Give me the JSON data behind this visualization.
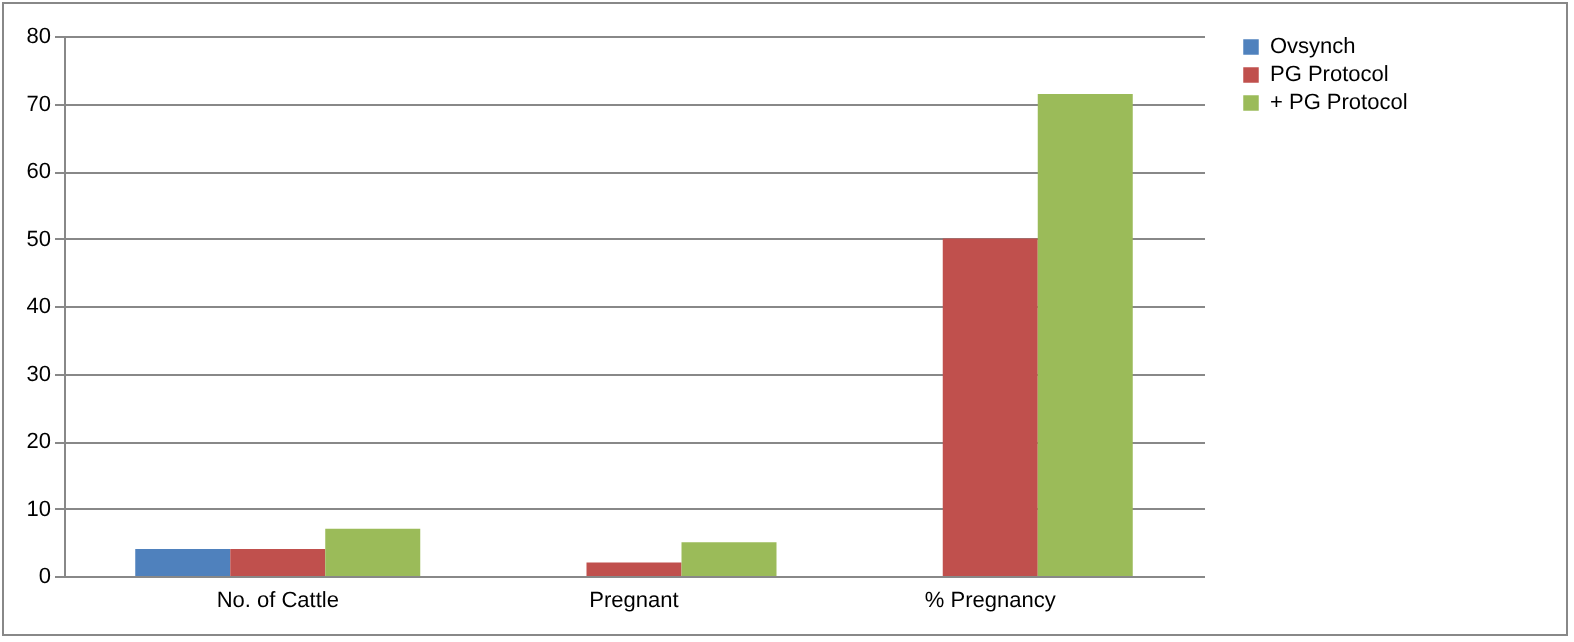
{
  "chart_data": {
    "type": "bar",
    "categories": [
      "No. of Cattle",
      "Pregnant",
      "% Pregnancy"
    ],
    "series": [
      {
        "name": "Ovsynch",
        "color": "#4f81bd",
        "values": [
          4,
          0,
          0
        ]
      },
      {
        "name": "PG Protocol",
        "color": "#c0504d",
        "values": [
          4,
          2,
          50
        ]
      },
      {
        "name": "+ PG Protocol",
        "color": "#9bbb59",
        "values": [
          7,
          5,
          71.4
        ]
      }
    ],
    "ylim": [
      0,
      80
    ],
    "yticks": [
      0,
      10,
      20,
      30,
      40,
      50,
      60,
      70,
      80
    ],
    "grid": "y",
    "legend": "right"
  }
}
